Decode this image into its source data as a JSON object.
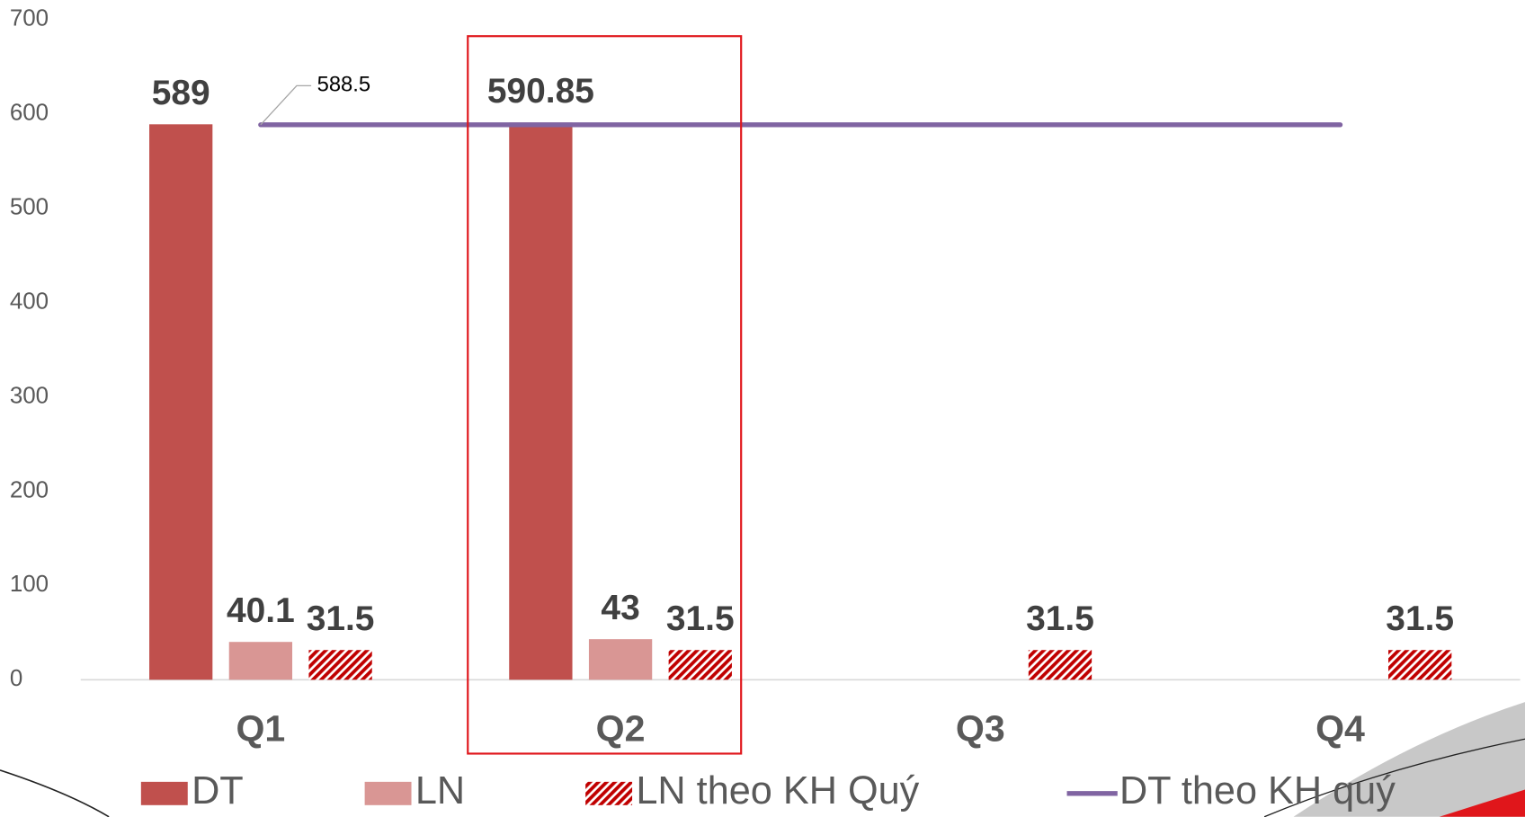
{
  "chart_data": {
    "type": "bar",
    "categories": [
      "Q1",
      "Q2",
      "Q3",
      "Q4"
    ],
    "series": [
      {
        "name": "DT",
        "type": "bar",
        "color": "#c0504d",
        "values": [
          589,
          590.85,
          null,
          null
        ]
      },
      {
        "name": "LN",
        "type": "bar",
        "color": "#d99694",
        "values": [
          40.1,
          43,
          null,
          null
        ]
      },
      {
        "name": "LN theo KH Quý",
        "type": "bar",
        "color": "#c00000",
        "hatched": true,
        "values": [
          31.5,
          31.5,
          31.5,
          31.5
        ]
      },
      {
        "name": "DT theo KH quý",
        "type": "line",
        "color": "#8064a2",
        "values": [
          588.5,
          588.5,
          588.5,
          588.5
        ]
      }
    ],
    "ylim": [
      0,
      700
    ],
    "yticks": [
      0,
      100,
      200,
      300,
      400,
      500,
      600,
      700
    ],
    "highlight_index": 1,
    "legend": "bottom"
  }
}
